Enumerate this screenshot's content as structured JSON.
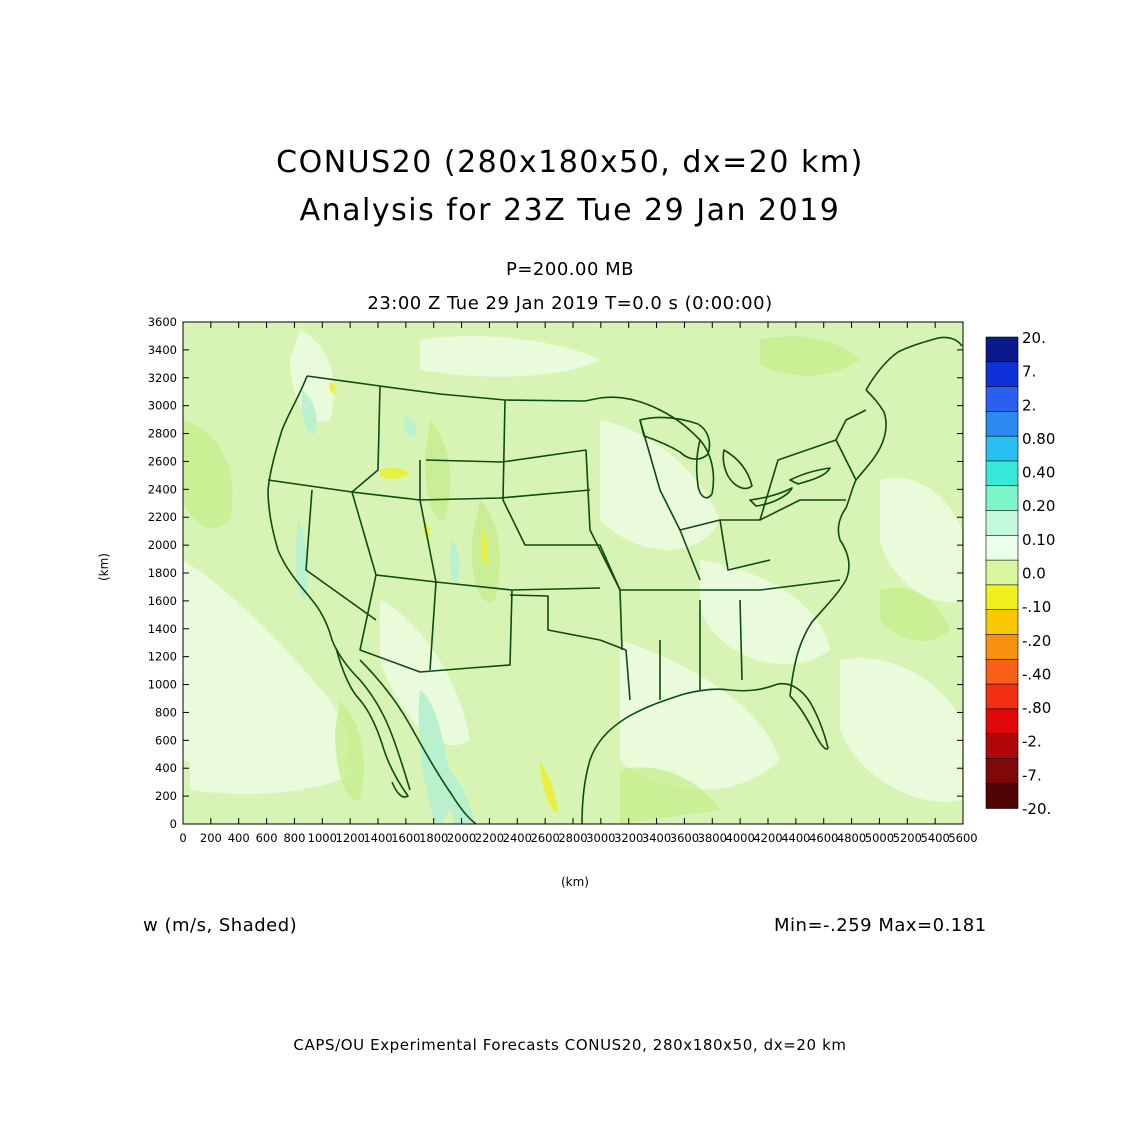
{
  "title": {
    "line1": "CONUS20 (280x180x50, dx=20 km)",
    "line2": "Analysis for 23Z Tue 29 Jan 2019"
  },
  "level": "P=200.00 MB",
  "time": "23:00 Z Tue 29 Jan 2019    T=0.0 s (0:00:00)",
  "variable_label": "w (m/s, Shaded)",
  "minmax": "Min=-.259  Max=0.181",
  "footer": "CAPS/OU Experimental Forecasts   CONUS20, 280x180x50, dx=20 km",
  "axes": {
    "xlabel": "(km)",
    "ylabel": "(km)",
    "x_ticks": [
      "0",
      "200",
      "400",
      "600",
      "800",
      "1000",
      "1200",
      "1400",
      "1600",
      "1800",
      "2000",
      "2200",
      "2400",
      "2600",
      "2800",
      "3000",
      "3200",
      "3400",
      "3600",
      "3800",
      "4000",
      "4200",
      "4400",
      "4600",
      "4800",
      "5000",
      "5200",
      "5400",
      "5600"
    ],
    "y_ticks": [
      "0",
      "200",
      "400",
      "600",
      "800",
      "1000",
      "1200",
      "1400",
      "1600",
      "1800",
      "2000",
      "2200",
      "2400",
      "2600",
      "2800",
      "3000",
      "3200",
      "3400",
      "3600"
    ],
    "xlim": [
      0,
      5600
    ],
    "ylim": [
      0,
      3600
    ]
  },
  "colorbar": {
    "labels": [
      "20.",
      "7.",
      "2.",
      "0.80",
      "0.40",
      "0.20",
      "0.10",
      "0.0",
      "-.10",
      "-.20",
      "-.40",
      "-.80",
      "-2.",
      "-7.",
      "-20."
    ],
    "colors": [
      "#0a1a8c",
      "#1030d8",
      "#2a60f0",
      "#2a8af0",
      "#28c0f0",
      "#38e8d8",
      "#7cf5c8",
      "#c4f8dc",
      "#eaffea",
      "#d8f5a0",
      "#f0f020",
      "#f8c800",
      "#f89010",
      "#f86018",
      "#f03010",
      "#e00808",
      "#b00808",
      "#800808",
      "#500404"
    ]
  },
  "map_colors": {
    "base": "#d8f4b4",
    "light": "#ecfce0",
    "green": "#c8ee90",
    "yellow": "#e8f040",
    "cyan": "#b8f0d0",
    "border": "#0d4a14"
  }
}
